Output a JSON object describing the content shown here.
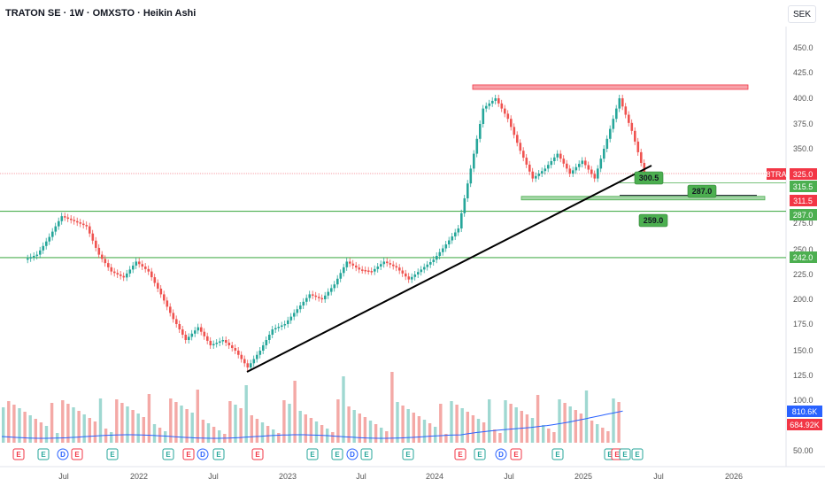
{
  "header": {
    "title": "TRATON SE · 1W · OMXSTO · Heikin Ashi",
    "currency": "SEK"
  },
  "chart_data": {
    "type": "candlestick",
    "symbol": "8TRA",
    "price_axis": {
      "ticks": [
        "450.0",
        "425.0",
        "400.0",
        "375.0",
        "350.0",
        "275.0",
        "250.0",
        "225.0",
        "200.0",
        "175.0",
        "150.0",
        "125.0",
        "100.0",
        "50.00"
      ],
      "ylim": [
        50,
        455
      ]
    },
    "time_axis": {
      "ticks": [
        "Jul",
        "2022",
        "Jul",
        "2023",
        "Jul",
        "2024",
        "Jul",
        "2025",
        "Jul",
        "2026"
      ]
    },
    "price_tags": [
      {
        "label": "8TRA",
        "value": "325.0",
        "color": "#f23645"
      },
      {
        "value": "315.5",
        "color": "#4caf50"
      },
      {
        "value": "311.5",
        "color": "#f23645"
      },
      {
        "value": "287.0",
        "color": "#4caf50"
      },
      {
        "value": "242.0",
        "color": "#4caf50"
      }
    ],
    "volume_tags": [
      {
        "value": "810.6K",
        "color": "#2962ff"
      },
      {
        "value": "684.92K",
        "color": "#f23645"
      }
    ],
    "horizontal_levels": [
      {
        "value": 287.0,
        "color": "#4caf50"
      },
      {
        "value": 242.0,
        "color": "#4caf50"
      },
      {
        "value": 325.0,
        "color": "#f7a1a8"
      }
    ],
    "annotations": [
      "300.5",
      "287.0",
      "259.0"
    ],
    "events": [
      "E",
      "E",
      "D",
      "E",
      "E",
      "E",
      "E",
      "D",
      "E",
      "E",
      "E",
      "E",
      "D",
      "E",
      "E",
      "E",
      "E",
      "D",
      "E",
      "E",
      "E",
      "E",
      "E",
      "E"
    ],
    "series": [
      {
        "name": "Heikin Ashi",
        "points": [
          {
            "t": "2021-04",
            "o": 240,
            "c": 245
          },
          {
            "t": "2021-05",
            "o": 245,
            "c": 262
          },
          {
            "t": "2021-06",
            "o": 262,
            "c": 282
          },
          {
            "t": "2021-07",
            "o": 282,
            "c": 277
          },
          {
            "t": "2021-08",
            "o": 277,
            "c": 272
          },
          {
            "t": "2021-09",
            "o": 272,
            "c": 245
          },
          {
            "t": "2021-10",
            "o": 245,
            "c": 228
          },
          {
            "t": "2021-11",
            "o": 228,
            "c": 222
          },
          {
            "t": "2021-12",
            "o": 222,
            "c": 238
          },
          {
            "t": "2022-01",
            "o": 238,
            "c": 228
          },
          {
            "t": "2022-02",
            "o": 228,
            "c": 205
          },
          {
            "t": "2022-03",
            "o": 205,
            "c": 180
          },
          {
            "t": "2022-04",
            "o": 180,
            "c": 160
          },
          {
            "t": "2022-05",
            "o": 160,
            "c": 172
          },
          {
            "t": "2022-06",
            "o": 172,
            "c": 155
          },
          {
            "t": "2022-07",
            "o": 155,
            "c": 160
          },
          {
            "t": "2022-08",
            "o": 160,
            "c": 150
          },
          {
            "t": "2022-09",
            "o": 150,
            "c": 133
          },
          {
            "t": "2022-10",
            "o": 133,
            "c": 150
          },
          {
            "t": "2022-11",
            "o": 150,
            "c": 170
          },
          {
            "t": "2022-12",
            "o": 170,
            "c": 175
          },
          {
            "t": "2023-01",
            "o": 175,
            "c": 190
          },
          {
            "t": "2023-02",
            "o": 190,
            "c": 205
          },
          {
            "t": "2023-03",
            "o": 205,
            "c": 200
          },
          {
            "t": "2023-04",
            "o": 200,
            "c": 215
          },
          {
            "t": "2023-05",
            "o": 215,
            "c": 238
          },
          {
            "t": "2023-06",
            "o": 238,
            "c": 230
          },
          {
            "t": "2023-07",
            "o": 230,
            "c": 228
          },
          {
            "t": "2023-08",
            "o": 228,
            "c": 238
          },
          {
            "t": "2023-09",
            "o": 238,
            "c": 232
          },
          {
            "t": "2023-10",
            "o": 232,
            "c": 220
          },
          {
            "t": "2023-11",
            "o": 220,
            "c": 230
          },
          {
            "t": "2023-12",
            "o": 230,
            "c": 240
          },
          {
            "t": "2024-01",
            "o": 240,
            "c": 255
          },
          {
            "t": "2024-02",
            "o": 255,
            "c": 270
          },
          {
            "t": "2024-03",
            "o": 270,
            "c": 330
          },
          {
            "t": "2024-04",
            "o": 330,
            "c": 390
          },
          {
            "t": "2024-05",
            "o": 390,
            "c": 400
          },
          {
            "t": "2024-06",
            "o": 400,
            "c": 380
          },
          {
            "t": "2024-07",
            "o": 380,
            "c": 348
          },
          {
            "t": "2024-08",
            "o": 348,
            "c": 320
          },
          {
            "t": "2024-09",
            "o": 320,
            "c": 330
          },
          {
            "t": "2024-10",
            "o": 330,
            "c": 345
          },
          {
            "t": "2024-11",
            "o": 345,
            "c": 325
          },
          {
            "t": "2024-12",
            "o": 325,
            "c": 338
          },
          {
            "t": "2025-01",
            "o": 338,
            "c": 320
          },
          {
            "t": "2025-02",
            "o": 320,
            "c": 360
          },
          {
            "t": "2025-03",
            "o": 360,
            "c": 400
          },
          {
            "t": "2025-04",
            "o": 400,
            "c": 368
          },
          {
            "t": "2025-05",
            "o": 368,
            "c": 325
          }
        ]
      }
    ]
  }
}
